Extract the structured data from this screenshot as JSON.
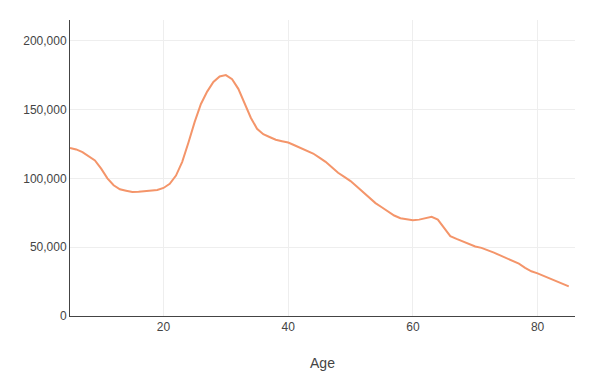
{
  "chart_data": {
    "type": "line",
    "xlabel": "Age",
    "color": "#F4956A",
    "grid": true,
    "xlim": [
      5,
      86
    ],
    "ylim": [
      0,
      215000
    ],
    "xticks": [
      20,
      40,
      60,
      80
    ],
    "yticks": [
      0,
      {
        "value": 50000,
        "label": "50,000"
      },
      {
        "value": 100000,
        "label": "100,000"
      },
      {
        "value": 150000,
        "label": "150,000"
      },
      {
        "value": 200000,
        "label": "200,000"
      }
    ],
    "x": [
      5,
      6,
      7,
      8,
      9,
      10,
      11,
      12,
      13,
      14,
      15,
      16,
      17,
      18,
      19,
      20,
      21,
      22,
      23,
      24,
      25,
      26,
      27,
      28,
      29,
      30,
      31,
      32,
      33,
      34,
      35,
      36,
      37,
      38,
      39,
      40,
      41,
      42,
      43,
      44,
      45,
      46,
      47,
      48,
      49,
      50,
      51,
      52,
      53,
      54,
      55,
      56,
      57,
      58,
      59,
      60,
      61,
      62,
      63,
      64,
      65,
      66,
      67,
      68,
      69,
      70,
      71,
      72,
      73,
      74,
      75,
      76,
      77,
      78,
      79,
      80,
      81,
      82,
      83,
      84,
      85
    ],
    "values": [
      122000,
      121000,
      119000,
      116000,
      113000,
      107000,
      100000,
      95000,
      92000,
      91000,
      90000,
      90200,
      90500,
      91000,
      91500,
      93000,
      96000,
      102000,
      112000,
      126000,
      141000,
      154000,
      163000,
      170000,
      174000,
      175000,
      172000,
      165000,
      154000,
      144000,
      136000,
      132000,
      130000,
      128000,
      127000,
      126000,
      124000,
      122000,
      120000,
      118000,
      115000,
      112000,
      108000,
      104000,
      101000,
      98000,
      94000,
      90000,
      86000,
      82000,
      79000,
      76000,
      73000,
      71000,
      70000,
      69500,
      70000,
      71000,
      72000,
      70000,
      64000,
      58000,
      56000,
      54000,
      52000,
      50500,
      49500,
      48000,
      46000,
      44000,
      42000,
      40000,
      38000,
      35000,
      32500,
      31000,
      29000,
      27000,
      25000,
      23000,
      21500
    ]
  }
}
